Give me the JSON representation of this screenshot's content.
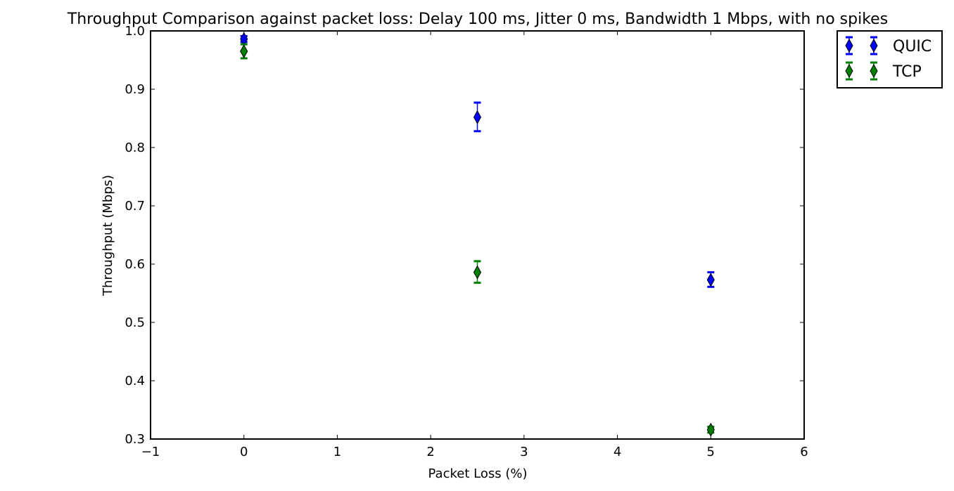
{
  "chart_data": {
    "type": "scatter",
    "title": "Throughput Comparison against packet loss: Delay 100 ms, Jitter 0 ms, Bandwidth 1 Mbps, with no spikes",
    "xlabel": "Packet Loss (%)",
    "ylabel": "Throughput (Mbps)",
    "xlim": [
      -1,
      6
    ],
    "ylim": [
      0.3,
      1.0
    ],
    "xticks": [
      -1,
      0,
      1,
      2,
      3,
      4,
      5,
      6
    ],
    "xtick_labels": [
      "−1",
      "0",
      "1",
      "2",
      "3",
      "4",
      "5",
      "6"
    ],
    "yticks": [
      0.3,
      0.4,
      0.5,
      0.6,
      0.7,
      0.8,
      0.9,
      1.0
    ],
    "ytick_labels": [
      "0.3",
      "0.4",
      "0.5",
      "0.6",
      "0.7",
      "0.8",
      "0.9",
      "1.0"
    ],
    "grid": false,
    "legend_position": "outside-top-right",
    "series": [
      {
        "name": "QUIC",
        "color": "#0000ff",
        "marker": "thin-diamond",
        "points": [
          {
            "x": 0,
            "y": 0.986,
            "err_low": 0.981,
            "err_high": 0.991
          },
          {
            "x": 2.5,
            "y": 0.852,
            "err_low": 0.828,
            "err_high": 0.877
          },
          {
            "x": 5,
            "y": 0.573,
            "err_low": 0.561,
            "err_high": 0.586
          }
        ]
      },
      {
        "name": "TCP",
        "color": "#008000",
        "marker": "thin-diamond",
        "points": [
          {
            "x": 0,
            "y": 0.965,
            "err_low": 0.953,
            "err_high": 0.977
          },
          {
            "x": 2.5,
            "y": 0.586,
            "err_low": 0.568,
            "err_high": 0.605
          },
          {
            "x": 5,
            "y": 0.316,
            "err_low": 0.311,
            "err_high": 0.321
          }
        ]
      }
    ]
  }
}
